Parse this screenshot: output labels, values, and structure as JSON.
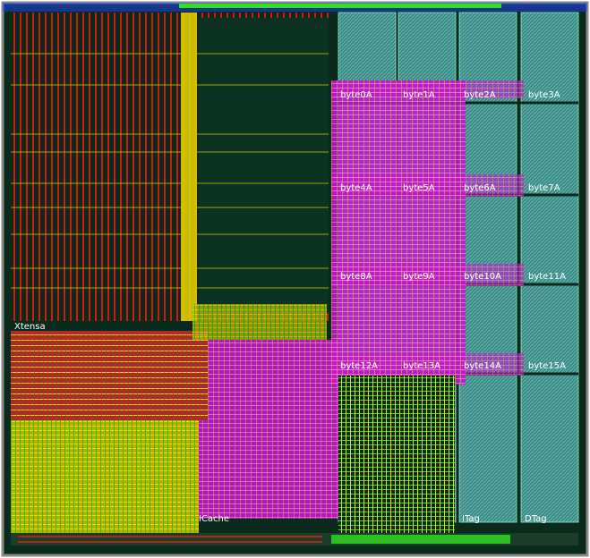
{
  "colors": {
    "background": "#ffffff",
    "die_fill": "#0a2a1c",
    "outline": "#8a8a8a",
    "sram_fill": "#3e8a86",
    "sram_hatch": "#5fb0a8",
    "metal_red": "#e02010",
    "metal_yellow": "#e8d800",
    "metal_magenta": "#e020e0",
    "metal_green": "#30e020",
    "metal_blue": "#2040ff",
    "metal_maroon": "#a03030",
    "label_color": "#ffffff"
  },
  "labels": {
    "core": "Xtensa",
    "icache": "ICache",
    "itag": "ITag",
    "dtag": "DTag",
    "bytes": [
      "byte0A",
      "byte1A",
      "byte2A",
      "byte3A",
      "byte4A",
      "byte5A",
      "byte6A",
      "byte7A",
      "byte8A",
      "byte9A",
      "byte10A",
      "byte11A",
      "byte12A",
      "byte13A",
      "byte14A",
      "byte15A"
    ]
  }
}
